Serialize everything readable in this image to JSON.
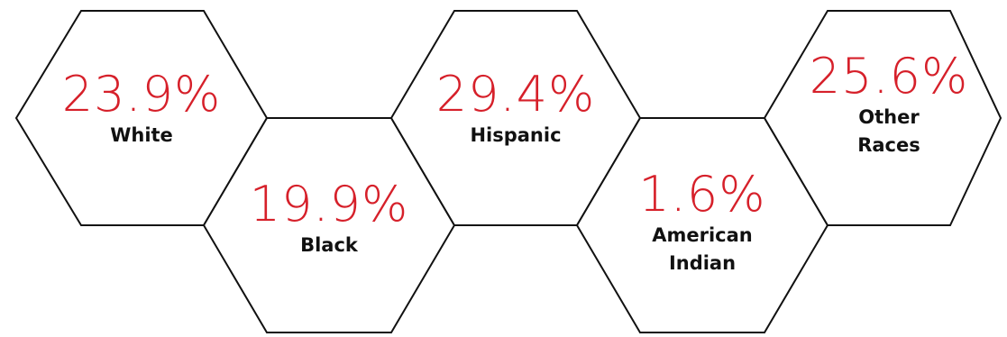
{
  "colors": {
    "percentage": "#d6202a",
    "label": "#111111",
    "hexagon_outline": "#111111"
  },
  "stats": [
    {
      "value": "23.9%",
      "label": "White"
    },
    {
      "value": "19.9%",
      "label": "Black"
    },
    {
      "value": "29.4%",
      "label": "Hispanic"
    },
    {
      "value": "1.6%",
      "label": "American\nIndian"
    },
    {
      "value": "25.6%",
      "label": "Other\nRaces"
    }
  ]
}
